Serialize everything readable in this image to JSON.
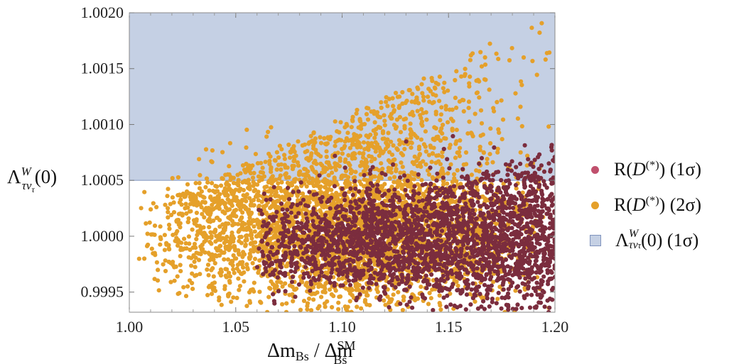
{
  "chart_data": {
    "type": "scatter",
    "title": "",
    "x_range": [
      1.0,
      1.2
    ],
    "y_range": [
      0.99932,
      1.002
    ],
    "x_ticks": [
      "1.00",
      "1.05",
      "1.10",
      "1.15",
      "1.20"
    ],
    "y_ticks": [
      "0.9995",
      "1.0000",
      "1.0005",
      "1.0010",
      "1.0015",
      "1.0020"
    ],
    "grid": false,
    "legend_position": "right",
    "shaded_region": {
      "name_main": "Λ",
      "name_sup": "W",
      "name_sub": "τν",
      "name_subsub": "τ",
      "name_tail": "(0)  (1σ)",
      "y_min": 1.0005,
      "y_max": 1.002,
      "color": "#c5d0e4",
      "edge_color": "#8ea0c6"
    },
    "series": [
      {
        "name_prefix": "R(",
        "name_var": "D",
        "name_sup": "(*)",
        "name_tail": ")  (1σ)",
        "color": "#7b2d3e",
        "legend_color": "#c0506d",
        "x_range": [
          1.06,
          1.2
        ],
        "y_center": 0.99997,
        "note": "dense band 0.9993–1.0008 growing with x"
      },
      {
        "name_prefix": "R(",
        "name_var": "D",
        "name_sup": "(*)",
        "name_tail": ")  (2σ)",
        "color": "#e5a02a",
        "legend_color": "#e5a02a",
        "x_range": [
          1.0,
          1.2
        ],
        "y_center": 1.0,
        "note": "band spreading upward to 1.002 at large x"
      }
    ]
  },
  "axes": {
    "x_label_main": "Δm",
    "x_label_sub": "Bs",
    "x_label_sep": " / Δm",
    "x_label_sup2": "SM",
    "x_label_sub2": "Bs",
    "y_label_main": "Λ",
    "y_label_sup": "W",
    "y_label_sub": "τν",
    "y_label_subsub": "τ",
    "y_label_tail": "(0)"
  }
}
